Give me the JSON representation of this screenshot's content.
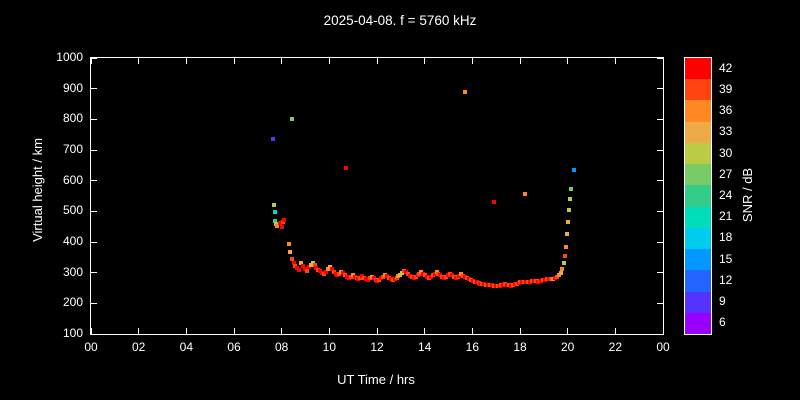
{
  "title": "2025-04-08. f = 5760 kHz",
  "chart_data": {
    "type": "scatter",
    "title": "2025-04-08. f = 5760 kHz",
    "xlabel": "UT Time / hrs",
    "ylabel": "Virtual height / km",
    "colorbar_label": "SNR / dB",
    "xlim": [
      0,
      24
    ],
    "ylim": [
      100,
      1000
    ],
    "grid": false,
    "x_ticks": [
      0,
      2,
      4,
      6,
      8,
      10,
      12,
      14,
      16,
      18,
      20,
      22,
      24
    ],
    "x_tick_labels": [
      "00",
      "02",
      "04",
      "06",
      "08",
      "10",
      "12",
      "14",
      "16",
      "18",
      "20",
      "22",
      "00"
    ],
    "y_ticks": [
      100,
      200,
      300,
      400,
      500,
      600,
      700,
      800,
      900,
      1000
    ],
    "snr_ticks": [
      6,
      9,
      12,
      15,
      18,
      21,
      24,
      27,
      30,
      33,
      36,
      39,
      42
    ],
    "snr_range": [
      4.5,
      43.5
    ],
    "colorbar_colors_bottom_to_top": [
      "#9900ff",
      "#5533ff",
      "#2266ff",
      "#0099ff",
      "#00ccee",
      "#00ddbb",
      "#33cc88",
      "#77cc66",
      "#bbcc44",
      "#eeaa44",
      "#ff8822",
      "#ff4411",
      "#ff0000"
    ],
    "background_color": "#000000",
    "axis_color": "#ffffff",
    "points_xyz": [
      [
        7.62,
        735,
        9
      ],
      [
        7.68,
        520,
        30
      ],
      [
        7.7,
        497,
        21
      ],
      [
        7.72,
        468,
        24
      ],
      [
        7.78,
        458,
        30
      ],
      [
        7.8,
        452,
        36
      ],
      [
        7.95,
        462,
        42
      ],
      [
        8.0,
        450,
        42
      ],
      [
        8.05,
        466,
        39
      ],
      [
        8.1,
        472,
        42
      ],
      [
        8.45,
        800,
        27
      ],
      [
        8.3,
        392,
        36
      ],
      [
        8.36,
        368,
        33
      ],
      [
        8.42,
        345,
        39
      ],
      [
        8.5,
        330,
        42
      ],
      [
        8.58,
        322,
        39
      ],
      [
        8.66,
        315,
        42
      ],
      [
        8.74,
        308,
        42
      ],
      [
        8.82,
        330,
        33
      ],
      [
        8.9,
        322,
        42
      ],
      [
        8.98,
        312,
        42
      ],
      [
        9.06,
        305,
        39
      ],
      [
        9.14,
        318,
        42
      ],
      [
        9.22,
        325,
        33
      ],
      [
        9.3,
        332,
        30
      ],
      [
        9.38,
        326,
        39
      ],
      [
        9.46,
        316,
        42
      ],
      [
        9.54,
        310,
        39
      ],
      [
        9.62,
        305,
        42
      ],
      [
        9.7,
        300,
        42
      ],
      [
        9.78,
        296,
        39
      ],
      [
        9.86,
        302,
        42
      ],
      [
        9.94,
        312,
        36
      ],
      [
        10.02,
        318,
        33
      ],
      [
        10.1,
        312,
        42
      ],
      [
        10.18,
        302,
        39
      ],
      [
        10.26,
        296,
        42
      ],
      [
        10.34,
        292,
        42
      ],
      [
        10.42,
        296,
        39
      ],
      [
        10.5,
        302,
        36
      ],
      [
        10.58,
        298,
        42
      ],
      [
        10.66,
        292,
        39
      ],
      [
        10.74,
        287,
        42
      ],
      [
        10.82,
        283,
        42
      ],
      [
        10.9,
        287,
        39
      ],
      [
        10.98,
        292,
        36
      ],
      [
        11.06,
        287,
        42
      ],
      [
        11.14,
        282,
        39
      ],
      [
        11.22,
        279,
        42
      ],
      [
        11.3,
        283,
        39
      ],
      [
        11.38,
        288,
        42
      ],
      [
        11.46,
        284,
        39
      ],
      [
        11.54,
        280,
        42
      ],
      [
        11.62,
        277,
        42
      ],
      [
        11.7,
        281,
        39
      ],
      [
        11.78,
        286,
        36
      ],
      [
        11.86,
        282,
        42
      ],
      [
        11.94,
        277,
        39
      ],
      [
        12.02,
        274,
        42
      ],
      [
        12.1,
        277,
        39
      ],
      [
        12.18,
        282,
        42
      ],
      [
        12.26,
        287,
        39
      ],
      [
        12.34,
        292,
        36
      ],
      [
        12.42,
        288,
        42
      ],
      [
        12.5,
        283,
        39
      ],
      [
        12.58,
        278,
        42
      ],
      [
        12.66,
        275,
        39
      ],
      [
        12.74,
        278,
        42
      ],
      [
        12.82,
        283,
        39
      ],
      [
        12.9,
        288,
        36
      ],
      [
        12.98,
        293,
        33
      ],
      [
        13.06,
        300,
        30
      ],
      [
        13.14,
        306,
        39
      ],
      [
        13.22,
        301,
        42
      ],
      [
        13.3,
        295,
        39
      ],
      [
        13.38,
        290,
        42
      ],
      [
        13.46,
        286,
        39
      ],
      [
        13.54,
        283,
        42
      ],
      [
        13.62,
        286,
        39
      ],
      [
        13.7,
        291,
        42
      ],
      [
        13.78,
        296,
        39
      ],
      [
        13.86,
        301,
        36
      ],
      [
        13.94,
        296,
        42
      ],
      [
        14.02,
        291,
        39
      ],
      [
        14.1,
        286,
        42
      ],
      [
        14.18,
        283,
        39
      ],
      [
        14.26,
        286,
        42
      ],
      [
        14.34,
        291,
        39
      ],
      [
        14.42,
        296,
        42
      ],
      [
        14.5,
        301,
        36
      ],
      [
        14.58,
        296,
        39
      ],
      [
        14.66,
        291,
        42
      ],
      [
        14.74,
        286,
        39
      ],
      [
        14.82,
        283,
        42
      ],
      [
        14.9,
        286,
        39
      ],
      [
        14.98,
        291,
        42
      ],
      [
        15.06,
        296,
        39
      ],
      [
        15.14,
        291,
        42
      ],
      [
        15.22,
        286,
        39
      ],
      [
        15.3,
        282,
        42
      ],
      [
        15.38,
        285,
        39
      ],
      [
        15.46,
        290,
        42
      ],
      [
        15.54,
        295,
        36
      ],
      [
        15.62,
        290,
        39
      ],
      [
        15.7,
        285,
        42
      ],
      [
        15.78,
        281,
        39
      ],
      [
        15.86,
        278,
        42
      ],
      [
        15.94,
        275,
        39
      ],
      [
        16.02,
        272,
        42
      ],
      [
        16.1,
        270,
        39
      ],
      [
        16.18,
        268,
        42
      ],
      [
        16.26,
        266,
        39
      ],
      [
        16.34,
        264,
        42
      ],
      [
        16.42,
        263,
        39
      ],
      [
        16.5,
        262,
        42
      ],
      [
        16.58,
        261,
        39
      ],
      [
        16.66,
        260,
        42
      ],
      [
        16.74,
        260,
        39
      ],
      [
        16.82,
        259,
        42
      ],
      [
        16.9,
        258,
        39
      ],
      [
        16.98,
        258,
        42
      ],
      [
        17.06,
        257,
        39
      ],
      [
        17.14,
        258,
        42
      ],
      [
        17.22,
        259,
        39
      ],
      [
        17.3,
        261,
        42
      ],
      [
        17.38,
        262,
        39
      ],
      [
        17.46,
        261,
        42
      ],
      [
        17.54,
        259,
        39
      ],
      [
        17.62,
        258,
        42
      ],
      [
        17.7,
        260,
        39
      ],
      [
        17.78,
        262,
        42
      ],
      [
        17.86,
        264,
        39
      ],
      [
        17.94,
        267,
        42
      ],
      [
        18.02,
        269,
        39
      ],
      [
        18.1,
        271,
        42
      ],
      [
        18.18,
        270,
        39
      ],
      [
        18.26,
        268,
        42
      ],
      [
        18.34,
        269,
        39
      ],
      [
        18.42,
        271,
        42
      ],
      [
        18.5,
        273,
        39
      ],
      [
        18.58,
        274,
        42
      ],
      [
        18.66,
        272,
        39
      ],
      [
        18.74,
        271,
        42
      ],
      [
        18.82,
        272,
        39
      ],
      [
        18.9,
        274,
        42
      ],
      [
        18.98,
        276,
        39
      ],
      [
        19.06,
        277,
        42
      ],
      [
        19.14,
        279,
        39
      ],
      [
        19.22,
        280,
        42
      ],
      [
        19.3,
        278,
        39
      ],
      [
        19.38,
        280,
        36
      ],
      [
        19.46,
        283,
        42
      ],
      [
        19.54,
        287,
        39
      ],
      [
        19.62,
        293,
        36
      ],
      [
        19.7,
        300,
        33
      ],
      [
        19.78,
        312,
        36
      ],
      [
        19.84,
        330,
        30
      ],
      [
        19.9,
        355,
        39
      ],
      [
        19.94,
        385,
        36
      ],
      [
        19.98,
        425,
        33
      ],
      [
        20.02,
        465,
        33
      ],
      [
        20.06,
        505,
        30
      ],
      [
        20.1,
        540,
        30
      ],
      [
        20.14,
        572,
        27
      ],
      [
        10.7,
        640,
        42
      ],
      [
        15.7,
        890,
        36
      ],
      [
        16.9,
        530,
        42
      ],
      [
        18.2,
        556,
        36
      ],
      [
        20.25,
        635,
        15
      ]
    ]
  }
}
